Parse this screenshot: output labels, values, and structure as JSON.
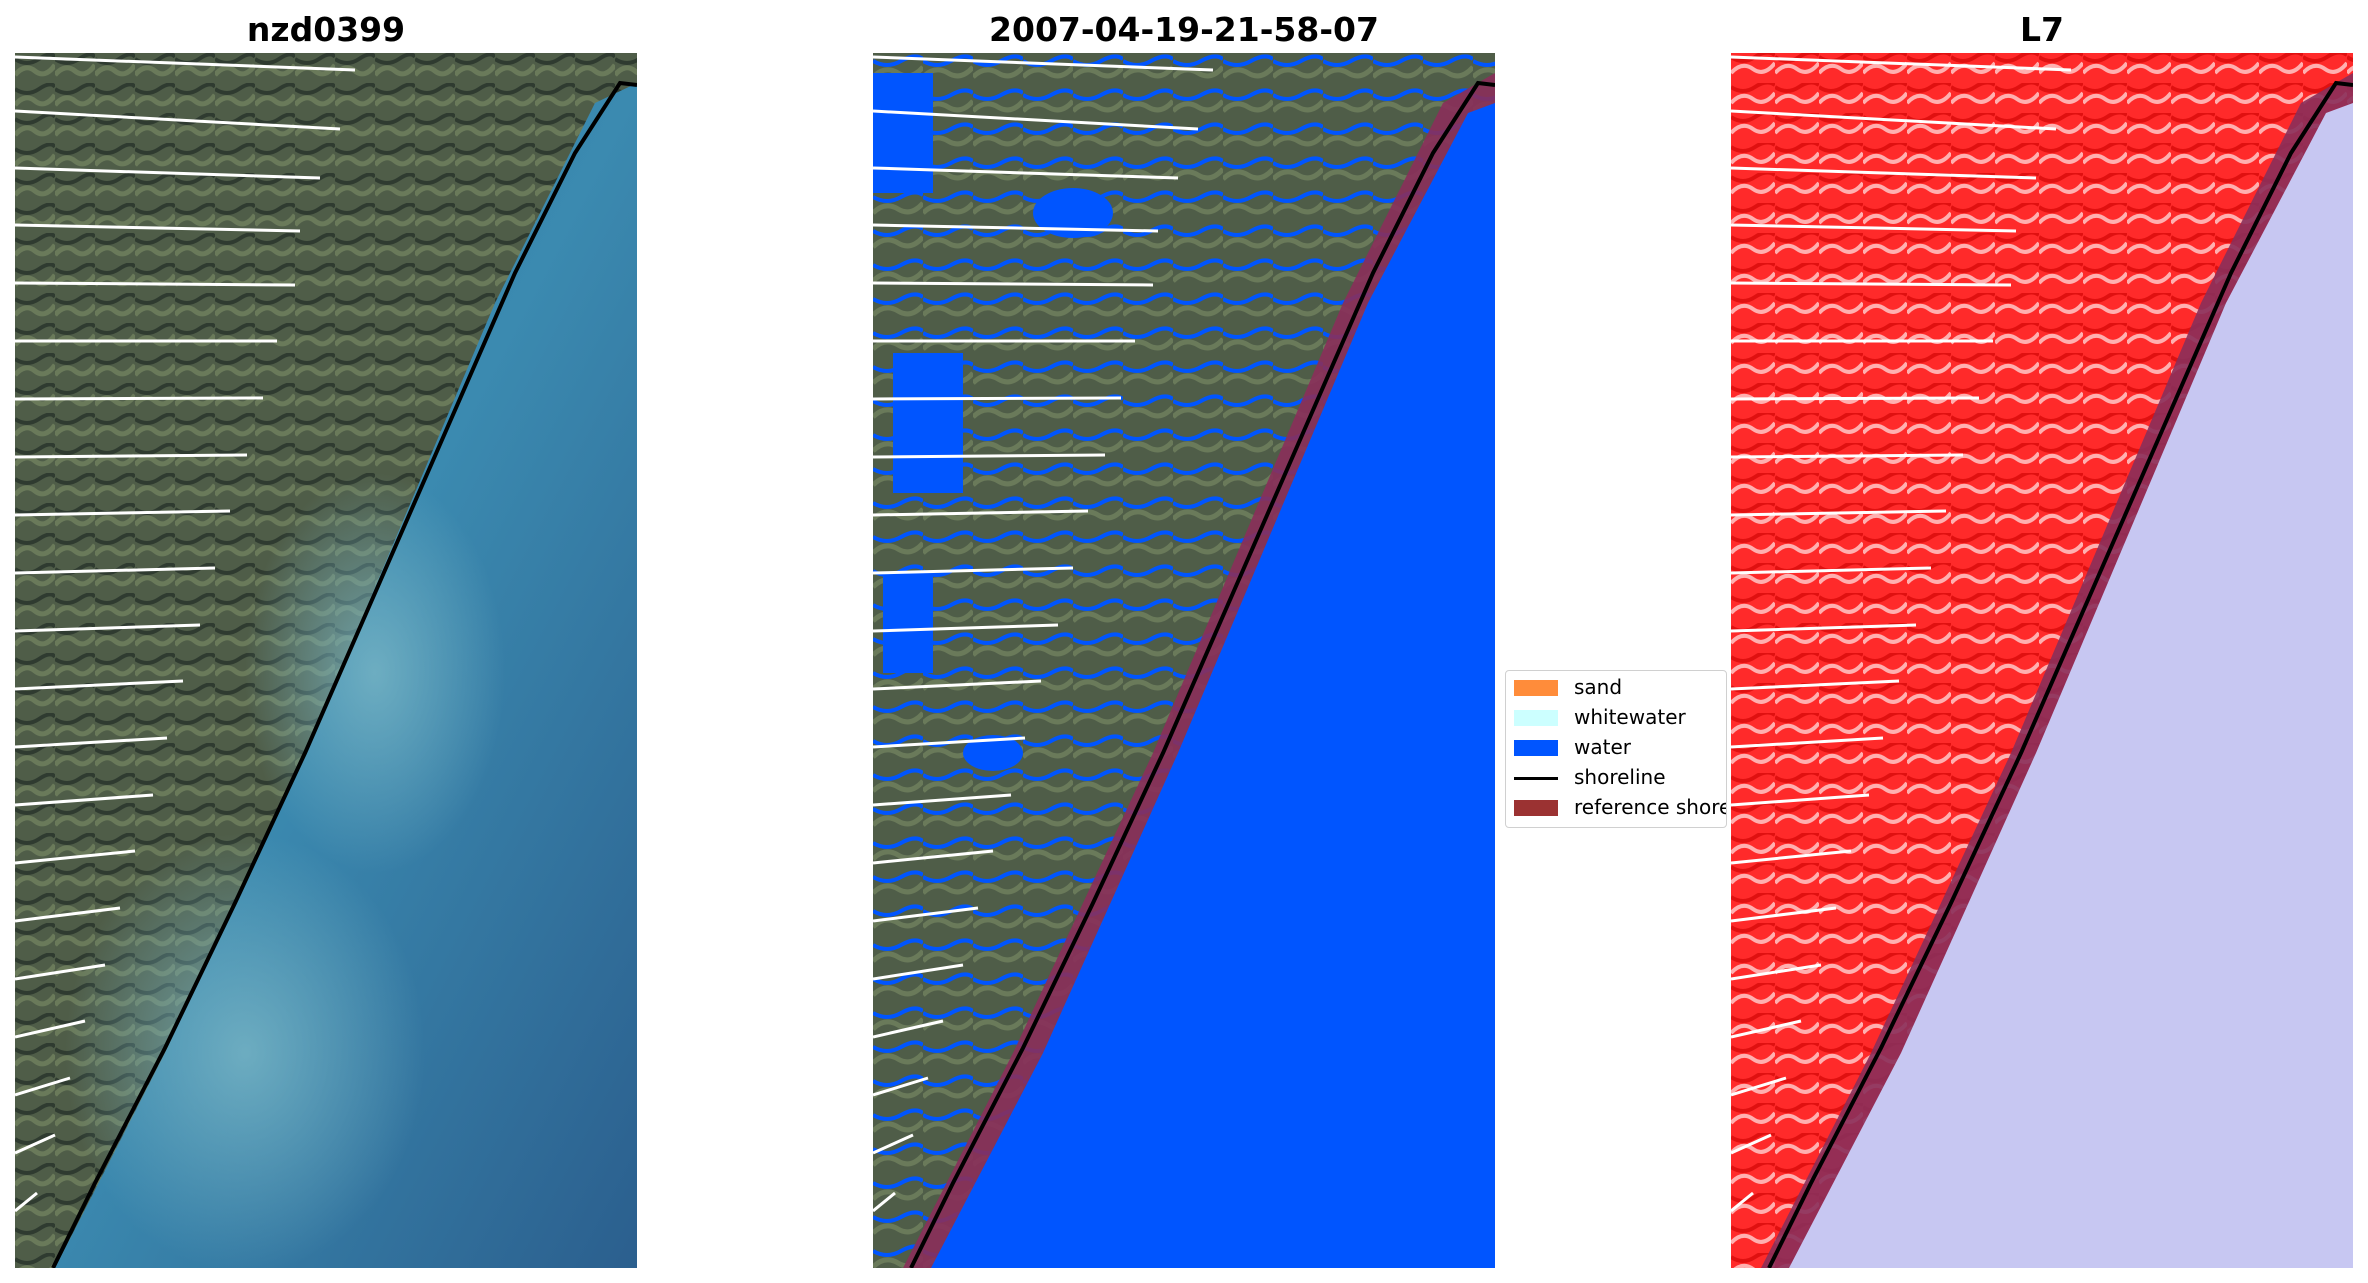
{
  "panels": [
    {
      "title": "nzd0399"
    },
    {
      "title": "2007-04-19-21-58-07"
    },
    {
      "title": "L7"
    }
  ],
  "legend": {
    "items": [
      {
        "label": "sand",
        "color": "#ff8c3a",
        "kind": "patch"
      },
      {
        "label": "whitewater",
        "color": "#ccffff",
        "kind": "patch"
      },
      {
        "label": "water",
        "color": "#0055ff",
        "kind": "patch"
      },
      {
        "label": "shoreline",
        "color": "#000000",
        "kind": "line"
      },
      {
        "label": "reference shoreline",
        "color": "#9b3232",
        "kind": "patch"
      }
    ]
  },
  "colors": {
    "land": "#4d5a4a",
    "ocean_rgb": "#2d7aa0",
    "water_class": "#0055ff",
    "ocean_mndwi": "#c7c7f2",
    "land_mndwi": "#ff2020",
    "reference_buffer": "#8a2f5a",
    "scan_gaps": "#ffffff"
  }
}
